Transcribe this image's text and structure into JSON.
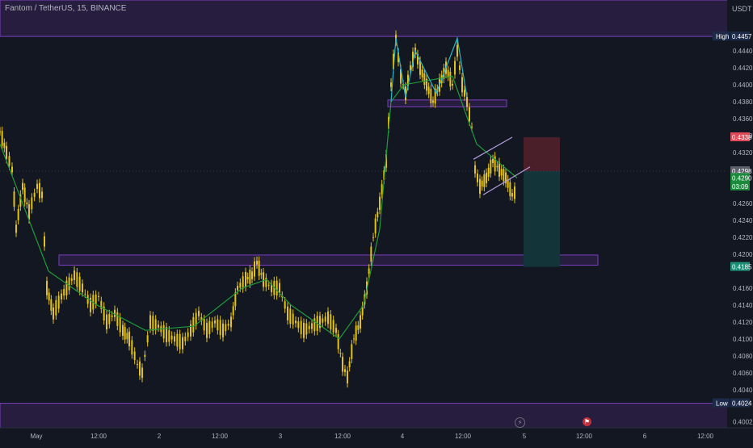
{
  "header": {
    "title": "Fantom / TetherUS, 15, BINANCE",
    "currency": "USDT"
  },
  "icons": {
    "alert": "lightning-icon",
    "event": "flag-icon"
  },
  "colors": {
    "background": "#131722",
    "zone": "#2b1f44",
    "zone_border": "#7b3fbf",
    "candle": "#e3c21a",
    "ma": "#1e9c3a",
    "pattern": "#2bb6c7",
    "channel": "#b39ddb",
    "stop": "#4a1f2a",
    "target": "#13353a",
    "axis_text": "#b2b5be"
  },
  "chart_data": {
    "type": "line",
    "y_ticks": [
      "0.4002",
      "0.4040",
      "0.4060",
      "0.4080",
      "0.4100",
      "0.4120",
      "0.4140",
      "0.4160",
      "0.4200",
      "0.4220",
      "0.4240",
      "0.4260",
      "0.4320",
      "0.4340",
      "0.4360",
      "0.4380",
      "0.4400",
      "0.4420",
      "0.4440"
    ],
    "x_ticks": [
      "May",
      "12:00",
      "2",
      "12:00",
      "3",
      "12:00",
      "4",
      "12:00",
      "5",
      "12:00",
      "6",
      "12:00"
    ],
    "ylim": [
      0.3995,
      0.45
    ],
    "price_labels": [
      {
        "label": "High",
        "value": "0.4457",
        "y": 0.4457,
        "bg": "#1e2a4a",
        "fg": "#ffffff"
      },
      {
        "label": "",
        "value": "0.4338",
        "y": 0.4338,
        "bg": "#e04a59",
        "fg": "#ffffff"
      },
      {
        "label": "",
        "value": "0.4298",
        "y": 0.4298,
        "bg": "#5d606b",
        "fg": "#ffffff"
      },
      {
        "label": "",
        "value": "0.4290",
        "y": 0.429,
        "bg": "#1b8a3b",
        "fg": "#ffffff"
      },
      {
        "label": "",
        "value": "03:09",
        "y": 0.428,
        "bg": "#1b8a3b",
        "fg": "#ffffff"
      },
      {
        "label": "",
        "value": "0.4185",
        "y": 0.4185,
        "bg": "#1f8f78",
        "fg": "#ffffff"
      },
      {
        "label": "Low",
        "value": "0.4024",
        "y": 0.4024,
        "bg": "#1e2a4a",
        "fg": "#ffffff"
      }
    ],
    "price_series": [
      [
        0,
        0.4345
      ],
      [
        8,
        0.432
      ],
      [
        15,
        0.43
      ],
      [
        20,
        0.423
      ],
      [
        28,
        0.428
      ],
      [
        36,
        0.425
      ],
      [
        46,
        0.428
      ],
      [
        52,
        0.427
      ],
      [
        58,
        0.416
      ],
      [
        66,
        0.413
      ],
      [
        76,
        0.415
      ],
      [
        92,
        0.4175
      ],
      [
        102,
        0.416
      ],
      [
        112,
        0.414
      ],
      [
        122,
        0.415
      ],
      [
        132,
        0.412
      ],
      [
        142,
        0.413
      ],
      [
        152,
        0.411
      ],
      [
        160,
        0.41
      ],
      [
        170,
        0.407
      ],
      [
        176,
        0.406
      ],
      [
        186,
        0.412
      ],
      [
        196,
        0.4115
      ],
      [
        206,
        0.4105
      ],
      [
        216,
        0.41
      ],
      [
        226,
        0.4095
      ],
      [
        236,
        0.411
      ],
      [
        246,
        0.413
      ],
      [
        256,
        0.411
      ],
      [
        266,
        0.412
      ],
      [
        276,
        0.411
      ],
      [
        286,
        0.412
      ],
      [
        294,
        0.416
      ],
      [
        304,
        0.417
      ],
      [
        312,
        0.4175
      ],
      [
        318,
        0.419
      ],
      [
        326,
        0.417
      ],
      [
        336,
        0.416
      ],
      [
        346,
        0.416
      ],
      [
        356,
        0.413
      ],
      [
        366,
        0.412
      ],
      [
        376,
        0.411
      ],
      [
        386,
        0.4115
      ],
      [
        396,
        0.412
      ],
      [
        406,
        0.4125
      ],
      [
        416,
        0.411
      ],
      [
        424,
        0.407
      ],
      [
        430,
        0.4055
      ],
      [
        438,
        0.41
      ],
      [
        446,
        0.412
      ],
      [
        454,
        0.416
      ],
      [
        462,
        0.422
      ],
      [
        470,
        0.426
      ],
      [
        478,
        0.431
      ],
      [
        484,
        0.44
      ],
      [
        490,
        0.4455
      ],
      [
        496,
        0.441
      ],
      [
        502,
        0.439
      ],
      [
        508,
        0.442
      ],
      [
        514,
        0.444
      ],
      [
        520,
        0.442
      ],
      [
        528,
        0.44
      ],
      [
        536,
        0.438
      ],
      [
        544,
        0.44
      ],
      [
        552,
        0.442
      ],
      [
        560,
        0.44
      ],
      [
        566,
        0.444
      ],
      [
        572,
        0.44
      ],
      [
        578,
        0.438
      ],
      [
        584,
        0.435
      ],
      [
        588,
        0.43
      ],
      [
        594,
        0.428
      ],
      [
        602,
        0.429
      ],
      [
        610,
        0.431
      ],
      [
        618,
        0.43
      ],
      [
        626,
        0.429
      ],
      [
        634,
        0.427
      ],
      [
        640,
        0.4275
      ]
    ],
    "ma_series": [
      [
        0,
        0.433
      ],
      [
        60,
        0.418
      ],
      [
        120,
        0.414
      ],
      [
        180,
        0.411
      ],
      [
        240,
        0.4115
      ],
      [
        300,
        0.416
      ],
      [
        330,
        0.417
      ],
      [
        360,
        0.414
      ],
      [
        420,
        0.41
      ],
      [
        450,
        0.414
      ],
      [
        470,
        0.423
      ],
      [
        484,
        0.438
      ],
      [
        500,
        0.44
      ],
      [
        560,
        0.441
      ],
      [
        590,
        0.433
      ],
      [
        640,
        0.429
      ]
    ],
    "zones": [
      {
        "name": "top-resistance-zone",
        "y1": 0.4457,
        "y2": 0.45,
        "x1": 0,
        "x2": 932
      },
      {
        "name": "middle-support-zone",
        "y1": 0.4187,
        "y2": 0.4199,
        "x1": 73,
        "x2": 740
      },
      {
        "name": "bottom-support-zone",
        "y1": 0.3995,
        "y2": 0.4024,
        "x1": 0,
        "x2": 932
      },
      {
        "name": "neckline-zone",
        "y1": 0.4374,
        "y2": 0.4382,
        "x1": 480,
        "x2": 627
      }
    ],
    "pattern_line": [
      [
        484,
        0.438
      ],
      [
        490,
        0.4455
      ],
      [
        502,
        0.4385
      ],
      [
        514,
        0.444
      ],
      [
        540,
        0.439
      ],
      [
        566,
        0.4455
      ],
      [
        578,
        0.4385
      ]
    ],
    "channel_lines": [
      [
        [
          586,
          0.4312
        ],
        [
          634,
          0.4338
        ]
      ],
      [
        [
          598,
          0.427
        ],
        [
          656,
          0.4303
        ]
      ]
    ],
    "position": {
      "x1": 648,
      "x2": 693,
      "stop": 0.4338,
      "entry": 0.4298,
      "target": 0.4185
    }
  }
}
